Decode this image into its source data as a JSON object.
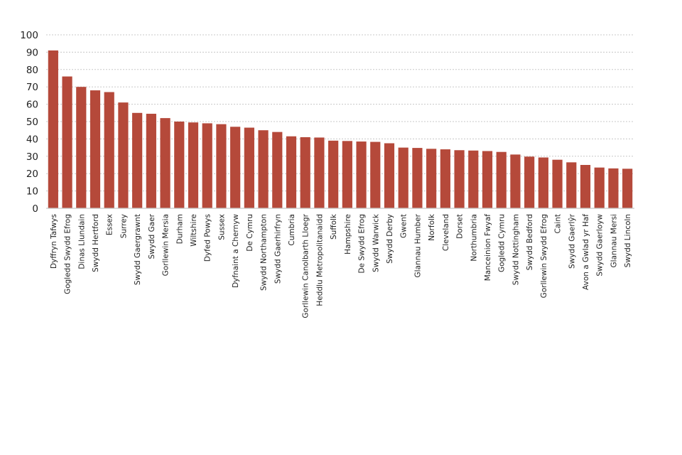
{
  "chart_data": {
    "type": "bar",
    "title": "",
    "xlabel": "",
    "ylabel": "",
    "ylim": [
      0,
      100
    ],
    "yticks": [
      0,
      10,
      20,
      30,
      40,
      50,
      60,
      70,
      80,
      90,
      100
    ],
    "grid": "horizontal dotted",
    "bar_color": "#b5493a",
    "categories": [
      "Dyffryn Tafwys",
      "Gogledd Swydd Efrog",
      "Dinas Llundain",
      "Swydd Hertford",
      "Essex",
      "Surrey",
      "Swydd Gaergrawnt",
      "Swydd Gaer",
      "Gorllewin Mersia",
      "Durham",
      "Wiltshire",
      "Dyfed Powys",
      "Sussex",
      "Dyfnaint a Chernyw",
      "De Cymru",
      "Swydd Northampton",
      "Swydd Gaerhirfryn",
      "Cumbria",
      "Gorllewin Canolbarth Lloegr",
      "Heddlu Metropolitanaidd",
      "Suffolk",
      "Hampshire",
      "De Swydd Efrog",
      "Swydd Warwick",
      "Swydd Derby",
      "Gwent",
      "Glannau Humber",
      "Norfolk",
      "Cleveland",
      "Dorset",
      "Northumbria",
      "Manceinion Fwyaf",
      "Gogledd Cymru",
      "Swydd Nottingham",
      "Swydd Bedford",
      "Gorllewin Swydd Efrog",
      "Caint",
      "Swydd Gaerlŷr",
      "Avon a Gwlad yr Haf",
      "Swydd Gaerloyw",
      "Glannau Mersi",
      "Swydd Lincoln"
    ],
    "values": [
      91,
      76,
      70,
      68,
      67,
      61,
      55,
      54.5,
      52,
      50,
      49.5,
      49,
      48.5,
      47,
      46.5,
      45,
      44,
      41.5,
      41,
      40.8,
      39,
      38.8,
      38.5,
      38.3,
      37.5,
      35,
      34.8,
      34.3,
      34,
      33.5,
      33.3,
      33,
      32.5,
      31,
      29.8,
      29.3,
      28,
      26.5,
      25,
      23.5,
      23,
      22.8
    ]
  }
}
